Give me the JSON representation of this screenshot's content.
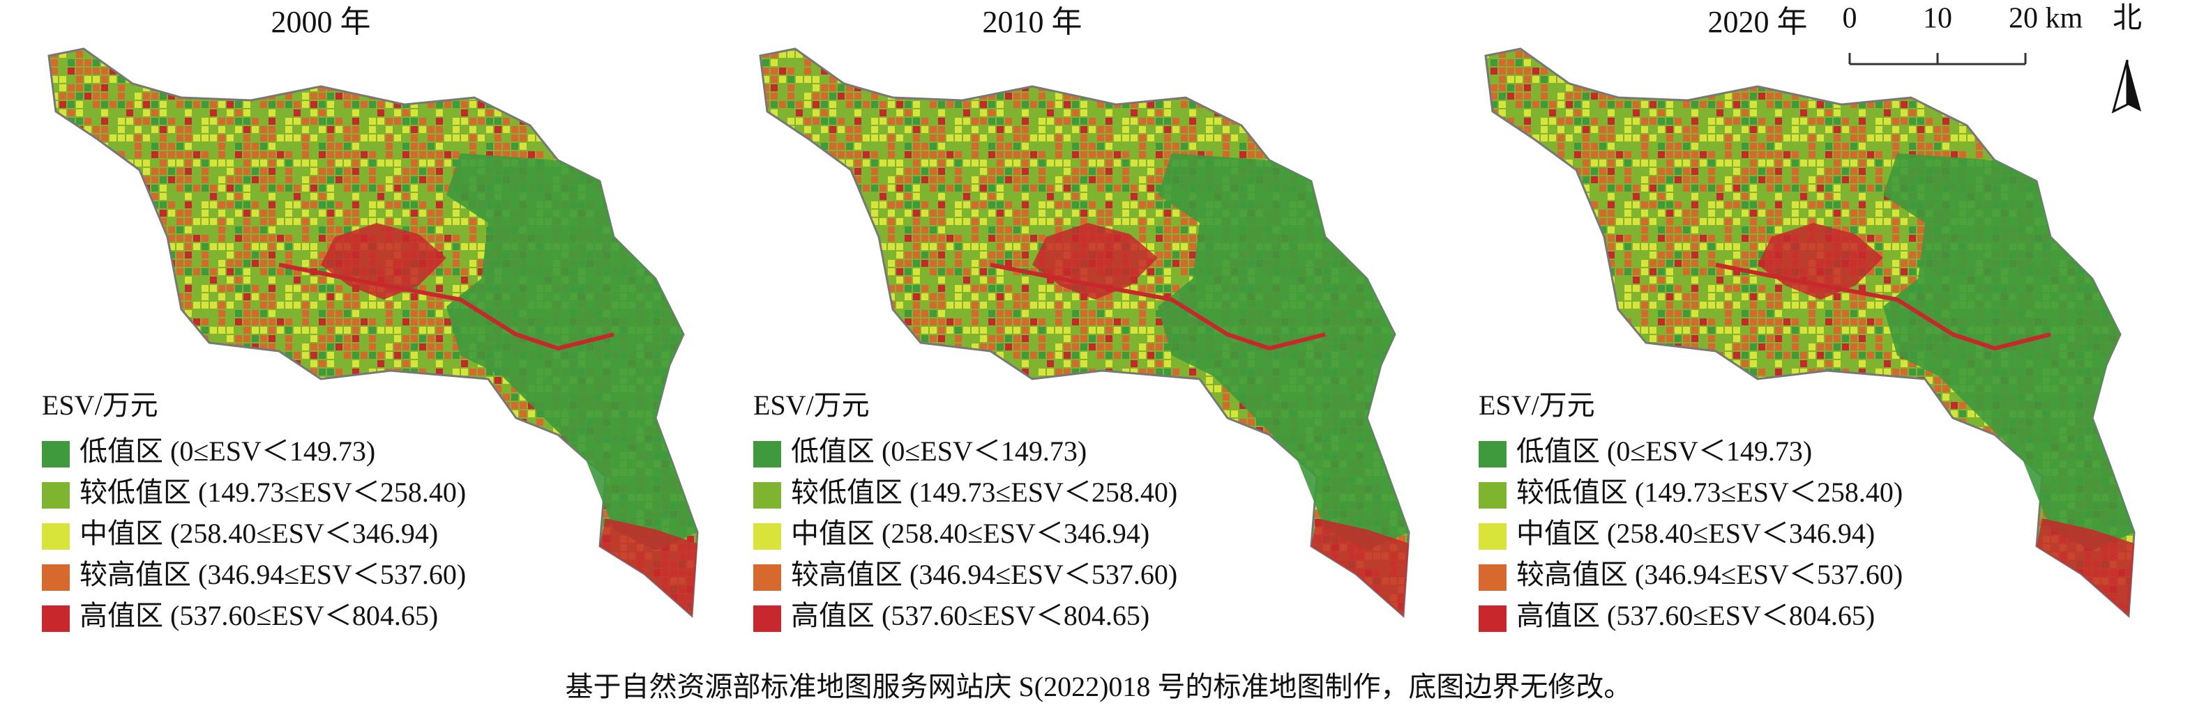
{
  "panels": [
    {
      "title": "2000 年"
    },
    {
      "title": "2010 年"
    },
    {
      "title": "2020 年"
    }
  ],
  "legend": {
    "title": "ESV/万元",
    "items": [
      {
        "label": "低值区 (0≤ESV＜149.73)",
        "color": "#3e9a3c"
      },
      {
        "label": "较低值区 (149.73≤ESV＜258.40)",
        "color": "#7fb431"
      },
      {
        "label": "中值区 (258.40≤ESV＜346.94)",
        "color": "#d9e43a"
      },
      {
        "label": "较高值区 (346.94≤ESV＜537.60)",
        "color": "#d8692e"
      },
      {
        "label": "高值区 (537.60≤ESV＜804.65)",
        "color": "#c8282c"
      }
    ]
  },
  "scale_bar": {
    "ticks": [
      "0",
      "10",
      "20 km"
    ]
  },
  "north": "北",
  "footer": "基于自然资源部标准地图服务网站庆 S(2022)018 号的标准地图制作，底图边界无修改。"
}
